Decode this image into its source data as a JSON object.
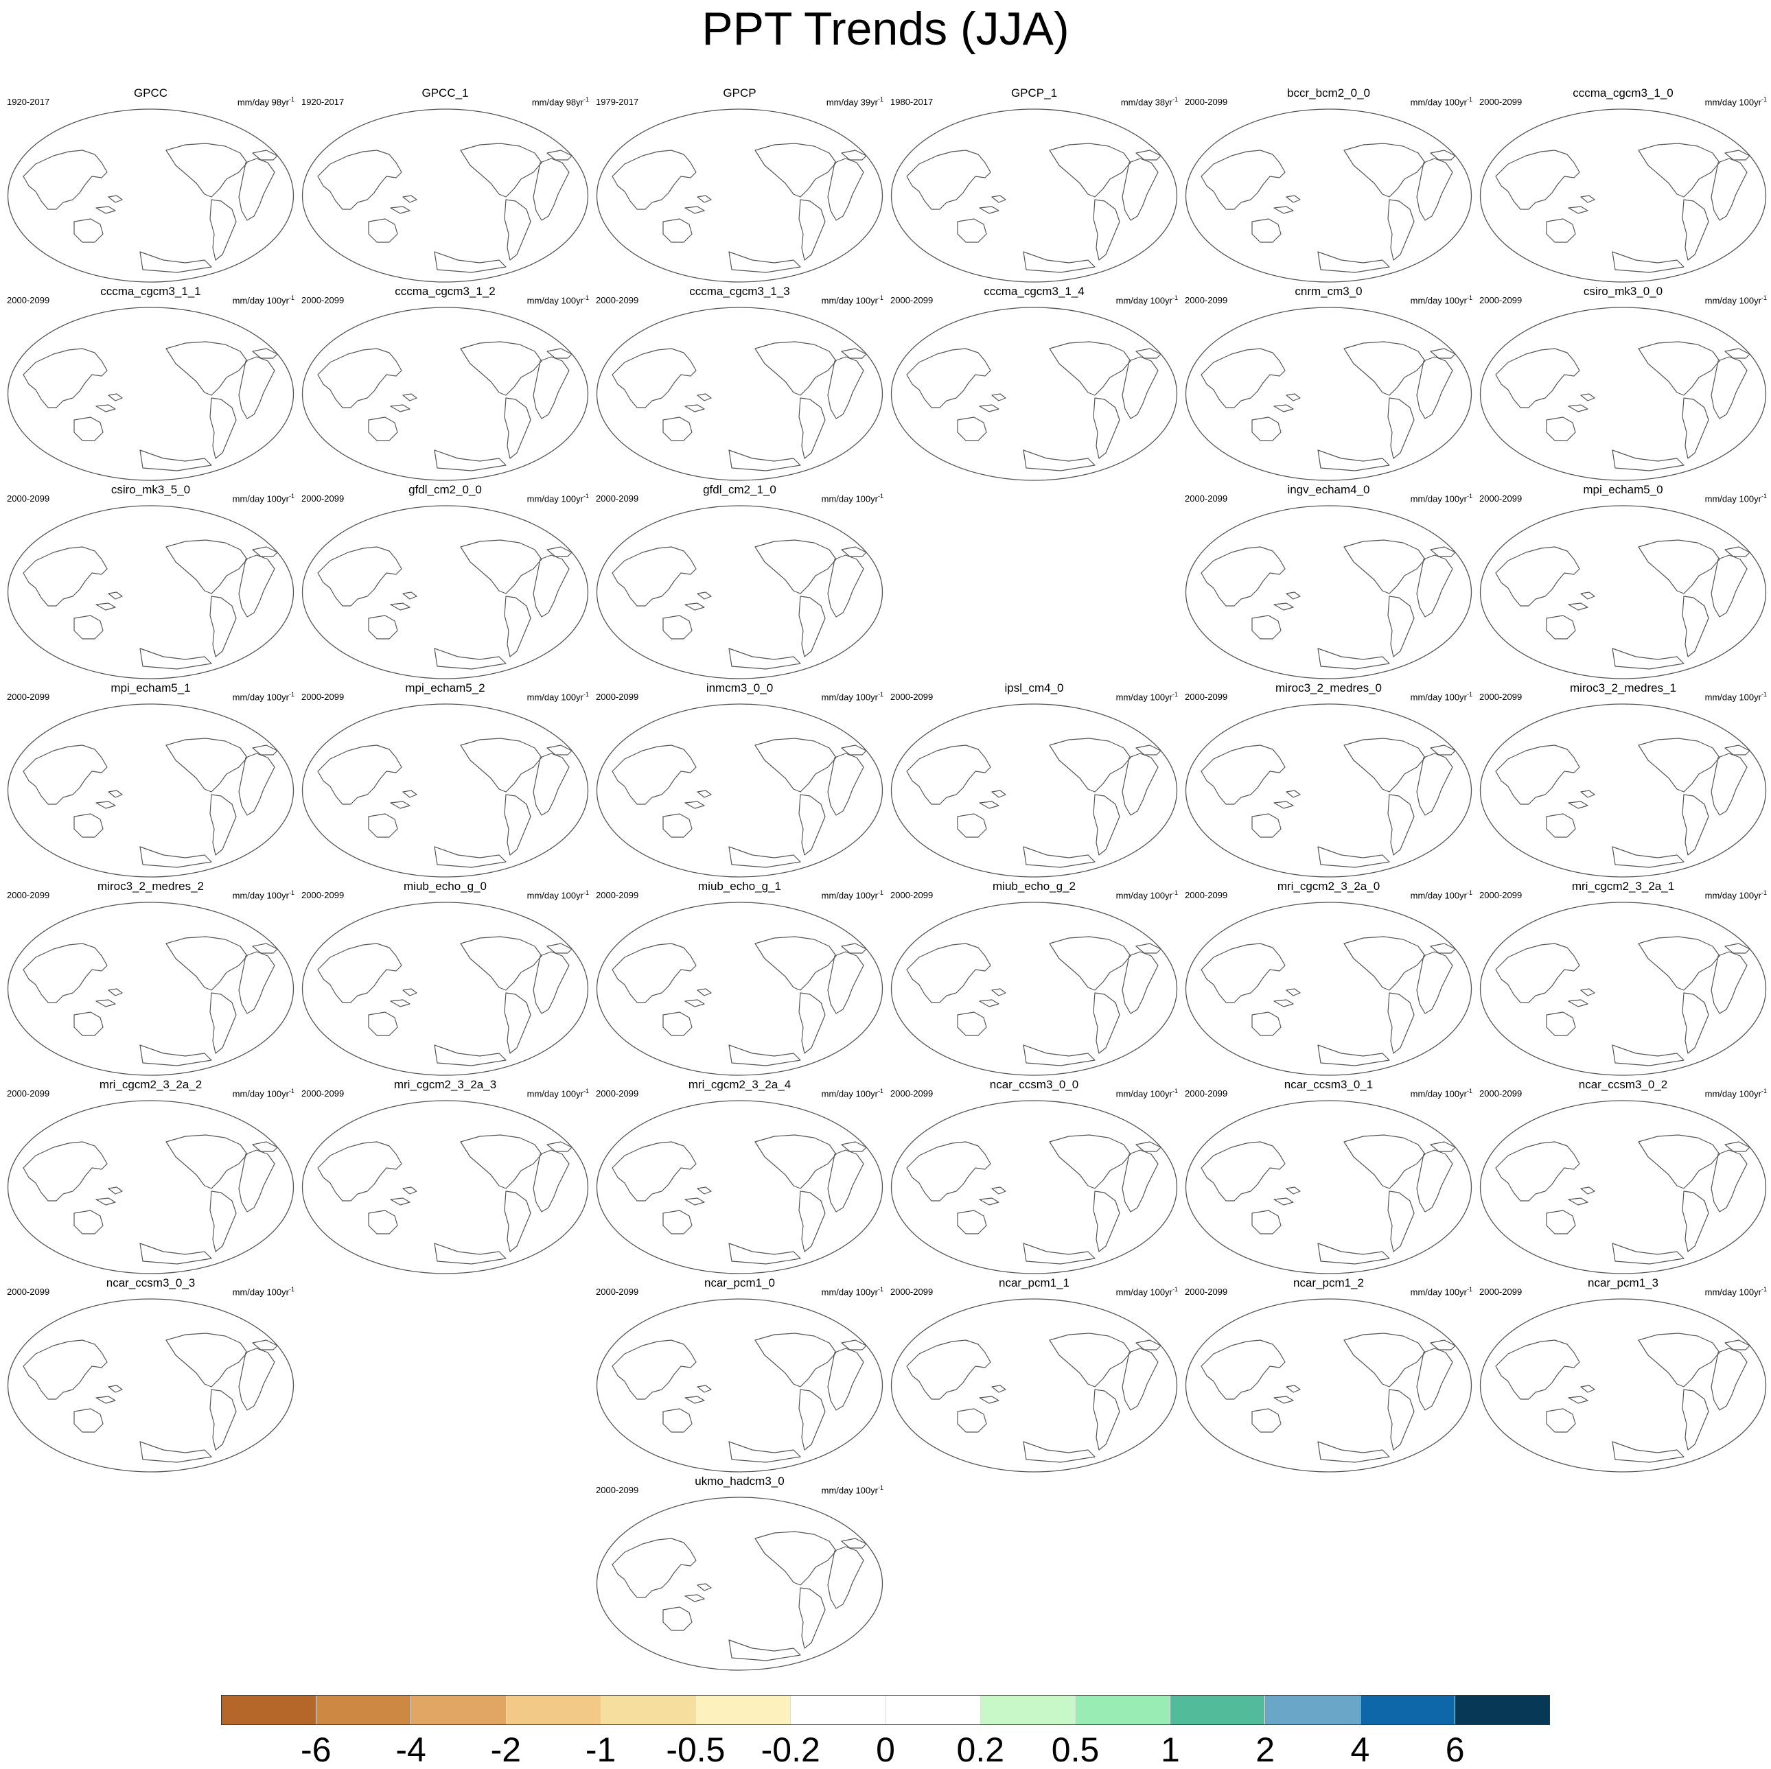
{
  "title": "PPT Trends (JJA)",
  "panels": [
    {
      "name": "GPCC",
      "period": "1920-2017",
      "units": "mm/day 98yr",
      "sup": "-1",
      "row": 0,
      "col": 0,
      "obs": true
    },
    {
      "name": "GPCC_1",
      "period": "1920-2017",
      "units": "mm/day 98yr",
      "sup": "-1",
      "row": 0,
      "col": 1,
      "obs": true
    },
    {
      "name": "GPCP",
      "period": "1979-2017",
      "units": "mm/day 39yr",
      "sup": "-1",
      "row": 0,
      "col": 2
    },
    {
      "name": "GPCP_1",
      "period": "1980-2017",
      "units": "mm/day 38yr",
      "sup": "-1",
      "row": 0,
      "col": 3
    },
    {
      "name": "bccr_bcm2_0_0",
      "period": "2000-2099",
      "units": "mm/day 100yr",
      "sup": "-1",
      "row": 0,
      "col": 4
    },
    {
      "name": "cccma_cgcm3_1_0",
      "period": "2000-2099",
      "units": "mm/day 100yr",
      "sup": "-1",
      "row": 0,
      "col": 5
    },
    {
      "name": "cccma_cgcm3_1_1",
      "period": "2000-2099",
      "units": "mm/day 100yr",
      "sup": "-1",
      "row": 1,
      "col": 0
    },
    {
      "name": "cccma_cgcm3_1_2",
      "period": "2000-2099",
      "units": "mm/day 100yr",
      "sup": "-1",
      "row": 1,
      "col": 1
    },
    {
      "name": "cccma_cgcm3_1_3",
      "period": "2000-2099",
      "units": "mm/day 100yr",
      "sup": "-1",
      "row": 1,
      "col": 2
    },
    {
      "name": "cccma_cgcm3_1_4",
      "period": "2000-2099",
      "units": "mm/day 100yr",
      "sup": "-1",
      "row": 1,
      "col": 3
    },
    {
      "name": "cnrm_cm3_0",
      "period": "2000-2099",
      "units": "mm/day 100yr",
      "sup": "-1",
      "row": 1,
      "col": 4
    },
    {
      "name": "csiro_mk3_0_0",
      "period": "2000-2099",
      "units": "mm/day 100yr",
      "sup": "-1",
      "row": 1,
      "col": 5
    },
    {
      "name": "csiro_mk3_5_0",
      "period": "2000-2099",
      "units": "mm/day 100yr",
      "sup": "-1",
      "row": 2,
      "col": 0
    },
    {
      "name": "gfdl_cm2_0_0",
      "period": "2000-2099",
      "units": "mm/day 100yr",
      "sup": "-1",
      "row": 2,
      "col": 1
    },
    {
      "name": "gfdl_cm2_1_0",
      "period": "2000-2099",
      "units": "mm/day 100yr",
      "sup": "-1",
      "row": 2,
      "col": 2
    },
    {
      "name": "ingv_echam4_0",
      "period": "2000-2099",
      "units": "mm/day 100yr",
      "sup": "-1",
      "row": 2,
      "col": 4
    },
    {
      "name": "mpi_echam5_0",
      "period": "2000-2099",
      "units": "mm/day 100yr",
      "sup": "-1",
      "row": 2,
      "col": 5
    },
    {
      "name": "mpi_echam5_1",
      "period": "2000-2099",
      "units": "mm/day 100yr",
      "sup": "-1",
      "row": 3,
      "col": 0
    },
    {
      "name": "mpi_echam5_2",
      "period": "2000-2099",
      "units": "mm/day 100yr",
      "sup": "-1",
      "row": 3,
      "col": 1
    },
    {
      "name": "inmcm3_0_0",
      "period": "2000-2099",
      "units": "mm/day 100yr",
      "sup": "-1",
      "row": 3,
      "col": 2
    },
    {
      "name": "ipsl_cm4_0",
      "period": "2000-2099",
      "units": "mm/day 100yr",
      "sup": "-1",
      "row": 3,
      "col": 3
    },
    {
      "name": "miroc3_2_medres_0",
      "period": "2000-2099",
      "units": "mm/day 100yr",
      "sup": "-1",
      "row": 3,
      "col": 4
    },
    {
      "name": "miroc3_2_medres_1",
      "period": "2000-2099",
      "units": "mm/day 100yr",
      "sup": "-1",
      "row": 3,
      "col": 5
    },
    {
      "name": "miroc3_2_medres_2",
      "period": "2000-2099",
      "units": "mm/day 100yr",
      "sup": "-1",
      "row": 4,
      "col": 0
    },
    {
      "name": "miub_echo_g_0",
      "period": "2000-2099",
      "units": "mm/day 100yr",
      "sup": "-1",
      "row": 4,
      "col": 1
    },
    {
      "name": "miub_echo_g_1",
      "period": "2000-2099",
      "units": "mm/day 100yr",
      "sup": "-1",
      "row": 4,
      "col": 2
    },
    {
      "name": "miub_echo_g_2",
      "period": "2000-2099",
      "units": "mm/day 100yr",
      "sup": "-1",
      "row": 4,
      "col": 3
    },
    {
      "name": "mri_cgcm2_3_2a_0",
      "period": "2000-2099",
      "units": "mm/day 100yr",
      "sup": "-1",
      "row": 4,
      "col": 4
    },
    {
      "name": "mri_cgcm2_3_2a_1",
      "period": "2000-2099",
      "units": "mm/day 100yr",
      "sup": "-1",
      "row": 4,
      "col": 5
    },
    {
      "name": "mri_cgcm2_3_2a_2",
      "period": "2000-2099",
      "units": "mm/day 100yr",
      "sup": "-1",
      "row": 5,
      "col": 0
    },
    {
      "name": "mri_cgcm2_3_2a_3",
      "period": "2000-2099",
      "units": "mm/day 100yr",
      "sup": "-1",
      "row": 5,
      "col": 1
    },
    {
      "name": "mri_cgcm2_3_2a_4",
      "period": "2000-2099",
      "units": "mm/day 100yr",
      "sup": "-1",
      "row": 5,
      "col": 2
    },
    {
      "name": "ncar_ccsm3_0_0",
      "period": "2000-2099",
      "units": "mm/day 100yr",
      "sup": "-1",
      "row": 5,
      "col": 3
    },
    {
      "name": "ncar_ccsm3_0_1",
      "period": "2000-2099",
      "units": "mm/day 100yr",
      "sup": "-1",
      "row": 5,
      "col": 4
    },
    {
      "name": "ncar_ccsm3_0_2",
      "period": "2000-2099",
      "units": "mm/day 100yr",
      "sup": "-1",
      "row": 5,
      "col": 5
    },
    {
      "name": "ncar_ccsm3_0_3",
      "period": "2000-2099",
      "units": "mm/day 100yr",
      "sup": "-1",
      "row": 6,
      "col": 0
    },
    {
      "name": "ncar_pcm1_0",
      "period": "2000-2099",
      "units": "mm/day 100yr",
      "sup": "-1",
      "row": 6,
      "col": 2
    },
    {
      "name": "ncar_pcm1_1",
      "period": "2000-2099",
      "units": "mm/day 100yr",
      "sup": "-1",
      "row": 6,
      "col": 3
    },
    {
      "name": "ncar_pcm1_2",
      "period": "2000-2099",
      "units": "mm/day 100yr",
      "sup": "-1",
      "row": 6,
      "col": 4
    },
    {
      "name": "ncar_pcm1_3",
      "period": "2000-2099",
      "units": "mm/day 100yr",
      "sup": "-1",
      "row": 6,
      "col": 5
    },
    {
      "name": "ukmo_hadcm3_0",
      "period": "2000-2099",
      "units": "mm/day 100yr",
      "sup": "-1",
      "row": 7,
      "col": 2
    }
  ],
  "colorbar": {
    "colors": [
      "#b5672a",
      "#cd8843",
      "#e1a564",
      "#f2c987",
      "#f6df9e",
      "#fdf2bd",
      "#ffffff",
      "#ffffff",
      "#c8f8c8",
      "#98ecb4",
      "#52bc9a",
      "#6aa6c8",
      "#0d67a8",
      "#073956"
    ],
    "labels": [
      "-6",
      "-4",
      "-2",
      "-1",
      "-0.5",
      "-0.2",
      "0",
      "0.2",
      "0.5",
      "1",
      "2",
      "4",
      "6"
    ]
  }
}
